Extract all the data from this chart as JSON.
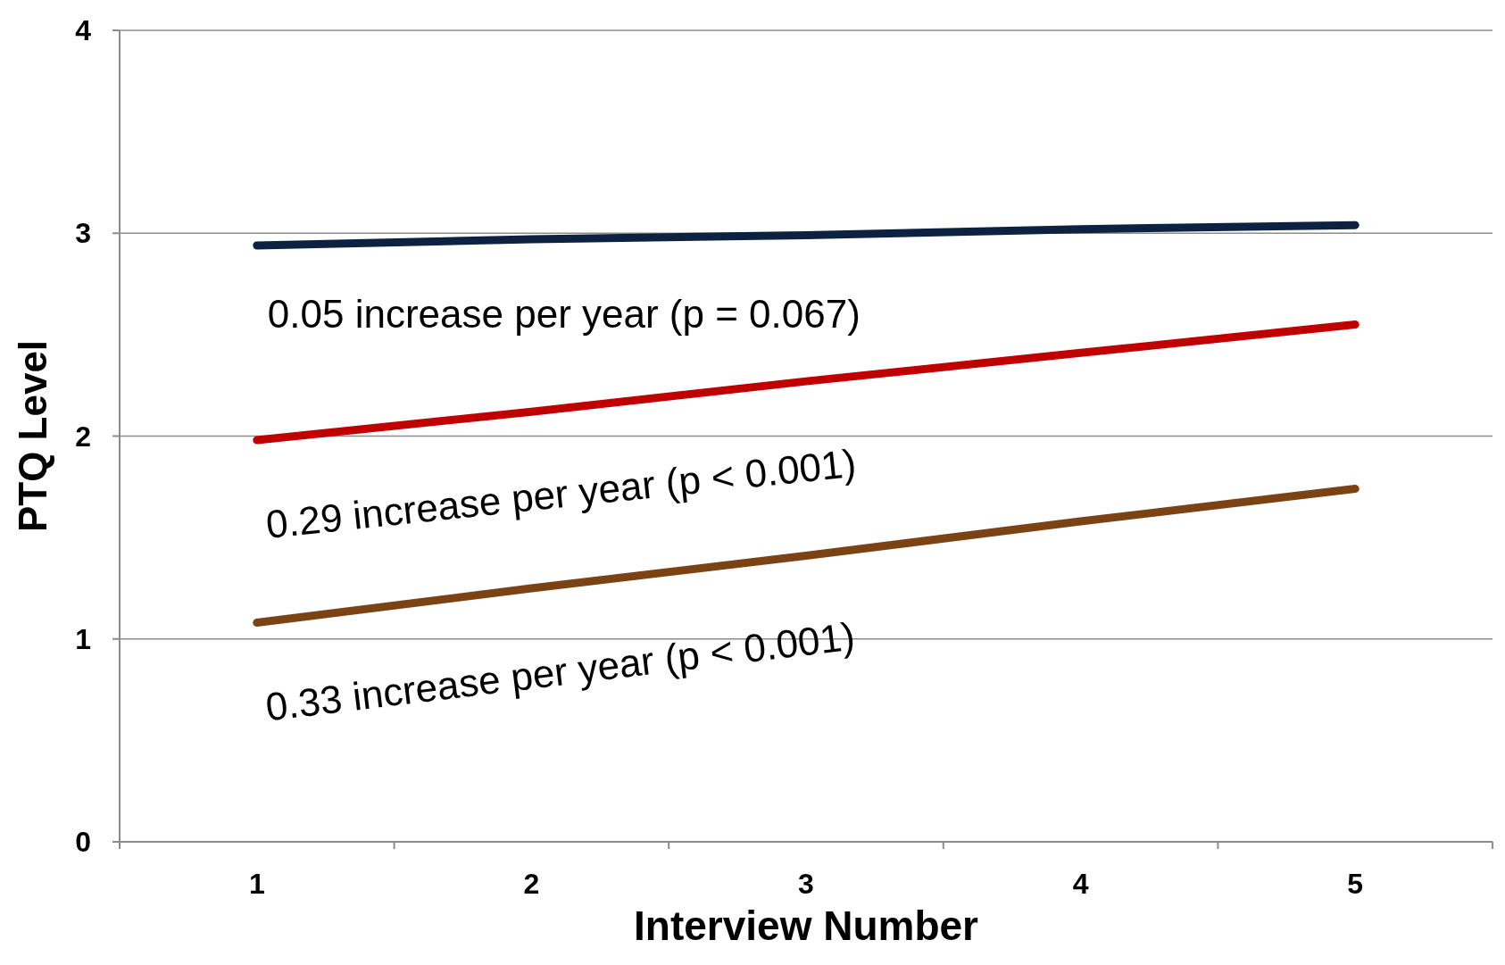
{
  "chart_data": {
    "type": "line",
    "xlabel": "Interview Number",
    "ylabel": "PTQ Level",
    "categories": [
      "1",
      "2",
      "3",
      "4",
      "5"
    ],
    "series": [
      {
        "color": "#0d2240",
        "values": [
          2.94,
          2.97,
          2.99,
          3.02,
          3.04
        ]
      },
      {
        "color": "#c00000",
        "values": [
          1.98,
          2.12,
          2.27,
          2.41,
          2.55
        ]
      },
      {
        "color": "#7b4314",
        "values": [
          1.08,
          1.25,
          1.41,
          1.58,
          1.74
        ]
      }
    ],
    "ylim": [
      0,
      4
    ],
    "yticks": [
      0,
      1,
      2,
      3,
      4
    ],
    "grid": "y",
    "marker": "none",
    "line_style": "solid",
    "annotations": [
      "0.05 increase per year (p = 0.067)",
      "0.29 increase per year (p < 0.001)",
      "0.33 increase per year (p < 0.001)"
    ]
  }
}
